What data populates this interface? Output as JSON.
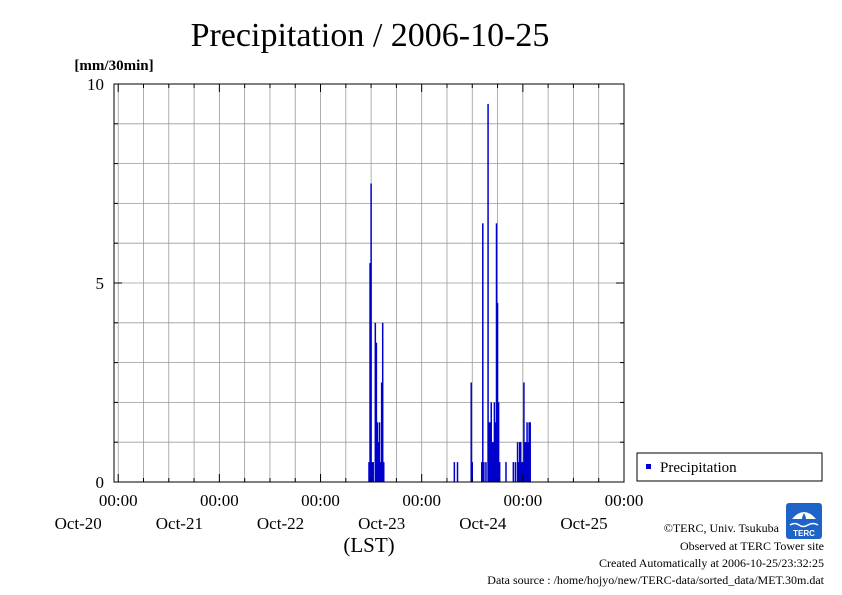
{
  "title": "Precipitation / 2006-10-25",
  "y_unit_label": "[mm/30min]",
  "x_axis_label": "(LST)",
  "legend": {
    "label": "Precipitation",
    "color": "#0000cc"
  },
  "credits": {
    "line1": "©TERC, Univ. Tsukuba",
    "line2": "Observed at TERC Tower site",
    "line3": "Created Automatically at 2006-10-25/23:32:25",
    "line4": "Data source : /home/hojyo/new/TERC-data/sorted_data/MET.30m.dat"
  },
  "logo_text": "TERC",
  "chart_data": {
    "type": "bar",
    "title": "Precipitation / 2006-10-25",
    "ylabel": "[mm/30min]",
    "xlabel": "(LST)",
    "ylim": [
      0,
      10
    ],
    "yticks": [
      0,
      5,
      10
    ],
    "x_unit": "hours since 2006-10-19 00:00",
    "xlim": [
      23,
      144
    ],
    "xtick_days": [
      {
        "time": "00:00",
        "date": "Oct-20"
      },
      {
        "time": "00:00",
        "date": "Oct-21"
      },
      {
        "time": "00:00",
        "date": "Oct-22"
      },
      {
        "time": "00:00",
        "date": "Oct-23"
      },
      {
        "time": "00:00",
        "date": "Oct-24"
      },
      {
        "time": "00:00",
        "date": "Oct-25"
      }
    ],
    "grid": true,
    "legend_position": "right",
    "series": [
      {
        "name": "Precipitation",
        "color": "#0000cc",
        "points": [
          [
            83.5,
            0.5
          ],
          [
            83.75,
            5.5
          ],
          [
            84.0,
            7.5
          ],
          [
            84.25,
            0.5
          ],
          [
            84.5,
            0.5
          ],
          [
            85.0,
            4.0
          ],
          [
            85.25,
            3.5
          ],
          [
            85.5,
            1.5
          ],
          [
            85.75,
            1.0
          ],
          [
            86.0,
            1.5
          ],
          [
            86.25,
            0.5
          ],
          [
            86.5,
            2.5
          ],
          [
            86.75,
            4.0
          ],
          [
            87.0,
            0.5
          ],
          [
            103.75,
            0.5
          ],
          [
            104.5,
            0.5
          ],
          [
            107.75,
            2.5
          ],
          [
            108.0,
            0.5
          ],
          [
            110.25,
            0.5
          ],
          [
            110.5,
            6.5
          ],
          [
            110.75,
            0.5
          ],
          [
            111.25,
            0.5
          ],
          [
            111.75,
            9.5
          ],
          [
            112.0,
            1.5
          ],
          [
            112.25,
            1.5
          ],
          [
            112.5,
            2.0
          ],
          [
            112.75,
            1.0
          ],
          [
            113.0,
            1.0
          ],
          [
            113.25,
            2.0
          ],
          [
            113.5,
            1.5
          ],
          [
            113.75,
            6.5
          ],
          [
            114.0,
            4.5
          ],
          [
            114.25,
            2.0
          ],
          [
            114.5,
            0.5
          ],
          [
            116.0,
            0.5
          ],
          [
            117.75,
            0.5
          ],
          [
            118.25,
            0.5
          ],
          [
            118.75,
            1.0
          ],
          [
            119.0,
            0.5
          ],
          [
            119.25,
            1.0
          ],
          [
            119.5,
            1.0
          ],
          [
            119.75,
            0.5
          ],
          [
            120.0,
            0.5
          ],
          [
            120.25,
            2.5
          ],
          [
            120.5,
            1.0
          ],
          [
            120.75,
            1.0
          ],
          [
            121.0,
            1.5
          ],
          [
            121.25,
            1.0
          ],
          [
            121.5,
            1.5
          ],
          [
            121.75,
            1.5
          ]
        ]
      }
    ]
  }
}
